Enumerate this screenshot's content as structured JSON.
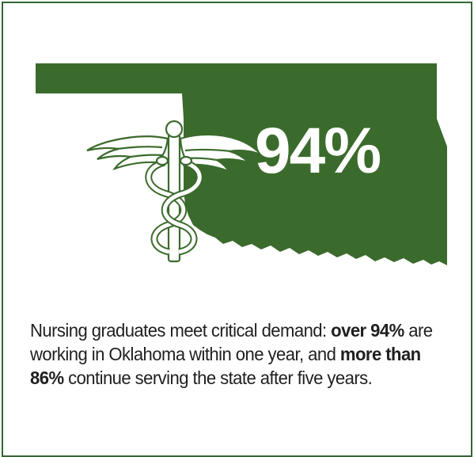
{
  "colors": {
    "border": "#336633",
    "map_fill": "#3b6b2c",
    "caduceus_fill": "#ffffff",
    "caduceus_stroke": "#3b6b2c",
    "stat_text": "#ffffff",
    "caption_text": "#1f1f1f"
  },
  "icons": {
    "map": "oklahoma-state-map",
    "symbol": "caduceus-icon"
  },
  "stat": {
    "value": "94%"
  },
  "caption": {
    "part1": "Nursing graduates meet critical demand: ",
    "part2": "over 94%",
    "part3": " are working in Oklahoma within one year, and ",
    "part4": "more than 86%",
    "part5": " continue serving the state after five years."
  }
}
